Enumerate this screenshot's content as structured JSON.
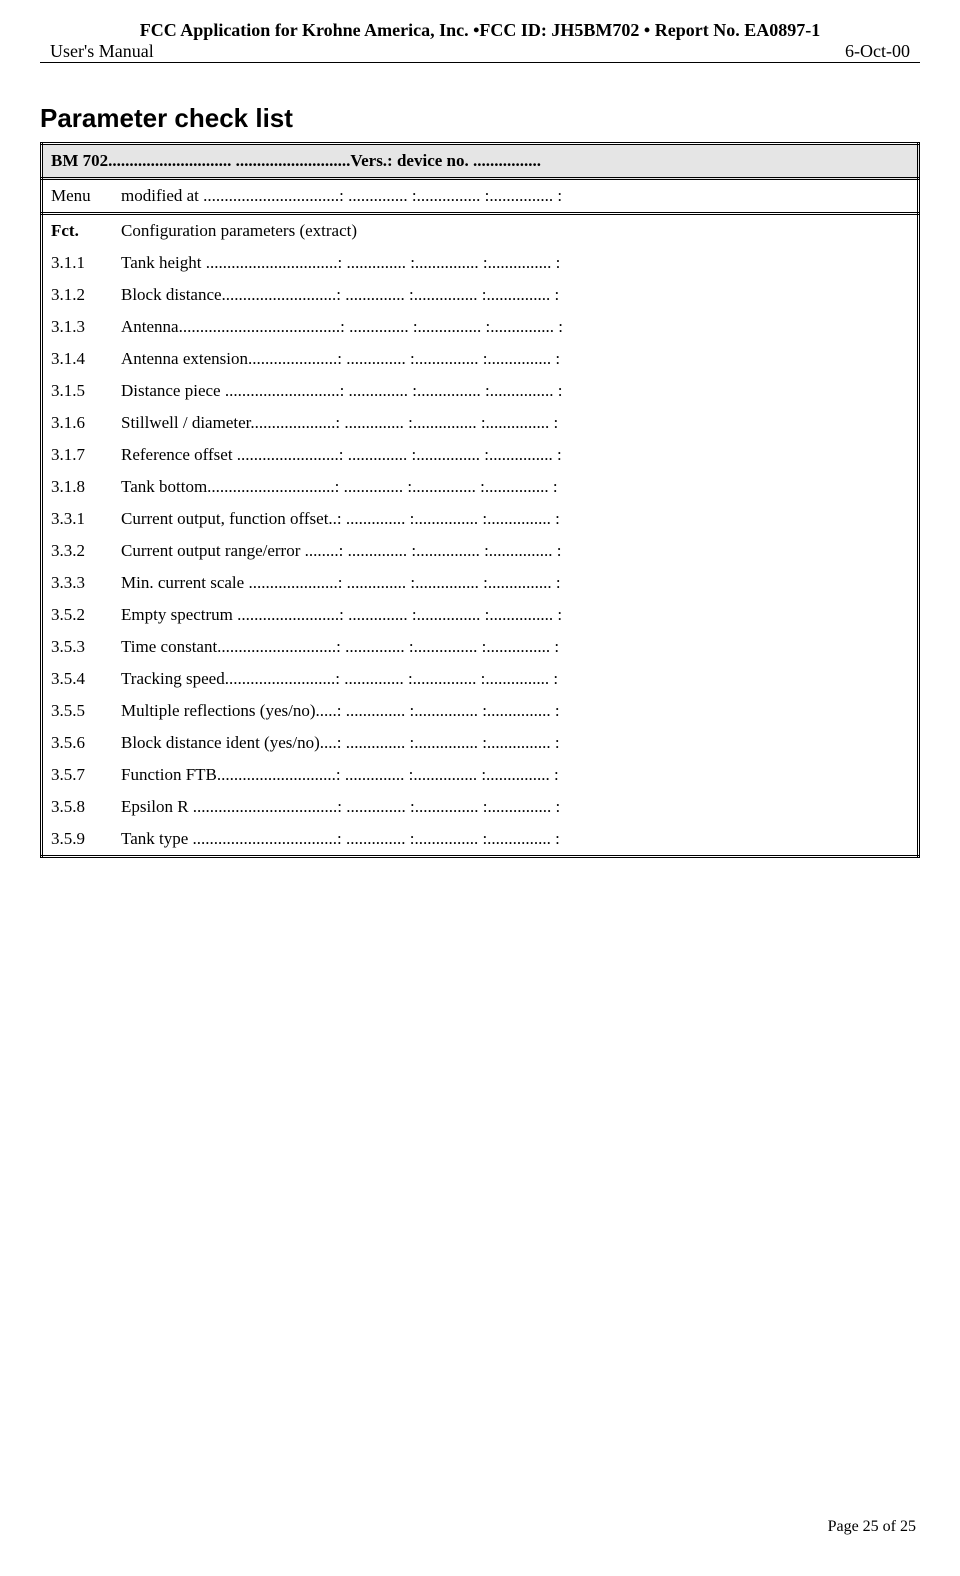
{
  "header": {
    "line1": "FCC Application for Krohne America, Inc. •FCC ID: JH5BM702 • Report No. EA0897-1",
    "left": "User's Manual",
    "right": "6-Oct-00"
  },
  "title": "Parameter check list",
  "device_row": "BM 702............................. ...........................Vers.: device no. ................",
  "menu_row": {
    "label": "Menu",
    "text": "modified at ................................: .............. :............... :............... :"
  },
  "fct_header": {
    "label": "Fct.",
    "text": "Configuration parameters (extract)"
  },
  "params": [
    {
      "fct": "3.1.1",
      "text": "Tank height ...............................: .............. :............... :............... :"
    },
    {
      "fct": "3.1.2",
      "text": "Block distance...........................: .............. :............... :............... :"
    },
    {
      "fct": "3.1.3",
      "text": "Antenna......................................: .............. :............... :............... :"
    },
    {
      "fct": "3.1.4",
      "text": "Antenna extension.....................: .............. :............... :............... :"
    },
    {
      "fct": "3.1.5",
      "text": "Distance piece ...........................: .............. :............... :............... :"
    },
    {
      "fct": "3.1.6",
      "text": "Stillwell / diameter....................: .............. :............... :............... :"
    },
    {
      "fct": "3.1.7",
      "text": "Reference offset ........................: .............. :............... :............... :"
    },
    {
      "fct": "3.1.8",
      "text": "Tank bottom..............................: .............. :............... :............... :"
    },
    {
      "fct": "3.3.1",
      "text": "Current output, function offset..: .............. :............... :............... :"
    },
    {
      "fct": "3.3.2",
      "text": "Current output range/error ........: .............. :............... :............... :"
    },
    {
      "fct": "3.3.3",
      "text": "Min. current scale .....................: .............. :............... :............... :"
    },
    {
      "fct": "3.5.2",
      "text": "Empty spectrum ........................: .............. :............... :............... :"
    },
    {
      "fct": "3.5.3",
      "text": "Time constant............................: .............. :............... :............... :"
    },
    {
      "fct": "3.5.4",
      "text": "Tracking speed..........................: .............. :............... :............... :"
    },
    {
      "fct": "3.5.5",
      "text": "Multiple reflections (yes/no).....: .............. :............... :............... :"
    },
    {
      "fct": "3.5.6",
      "text": "Block distance ident (yes/no)....: .............. :............... :............... :"
    },
    {
      "fct": "3.5.7",
      "text": "Function FTB............................: .............. :............... :............... :"
    },
    {
      "fct": "3.5.8",
      "text": "Epsilon R ..................................: .............. :............... :............... :"
    },
    {
      "fct": "3.5.9",
      "text": "Tank type ..................................: .............. :............... :............... :"
    }
  ],
  "footer": "Page 25 of 25"
}
